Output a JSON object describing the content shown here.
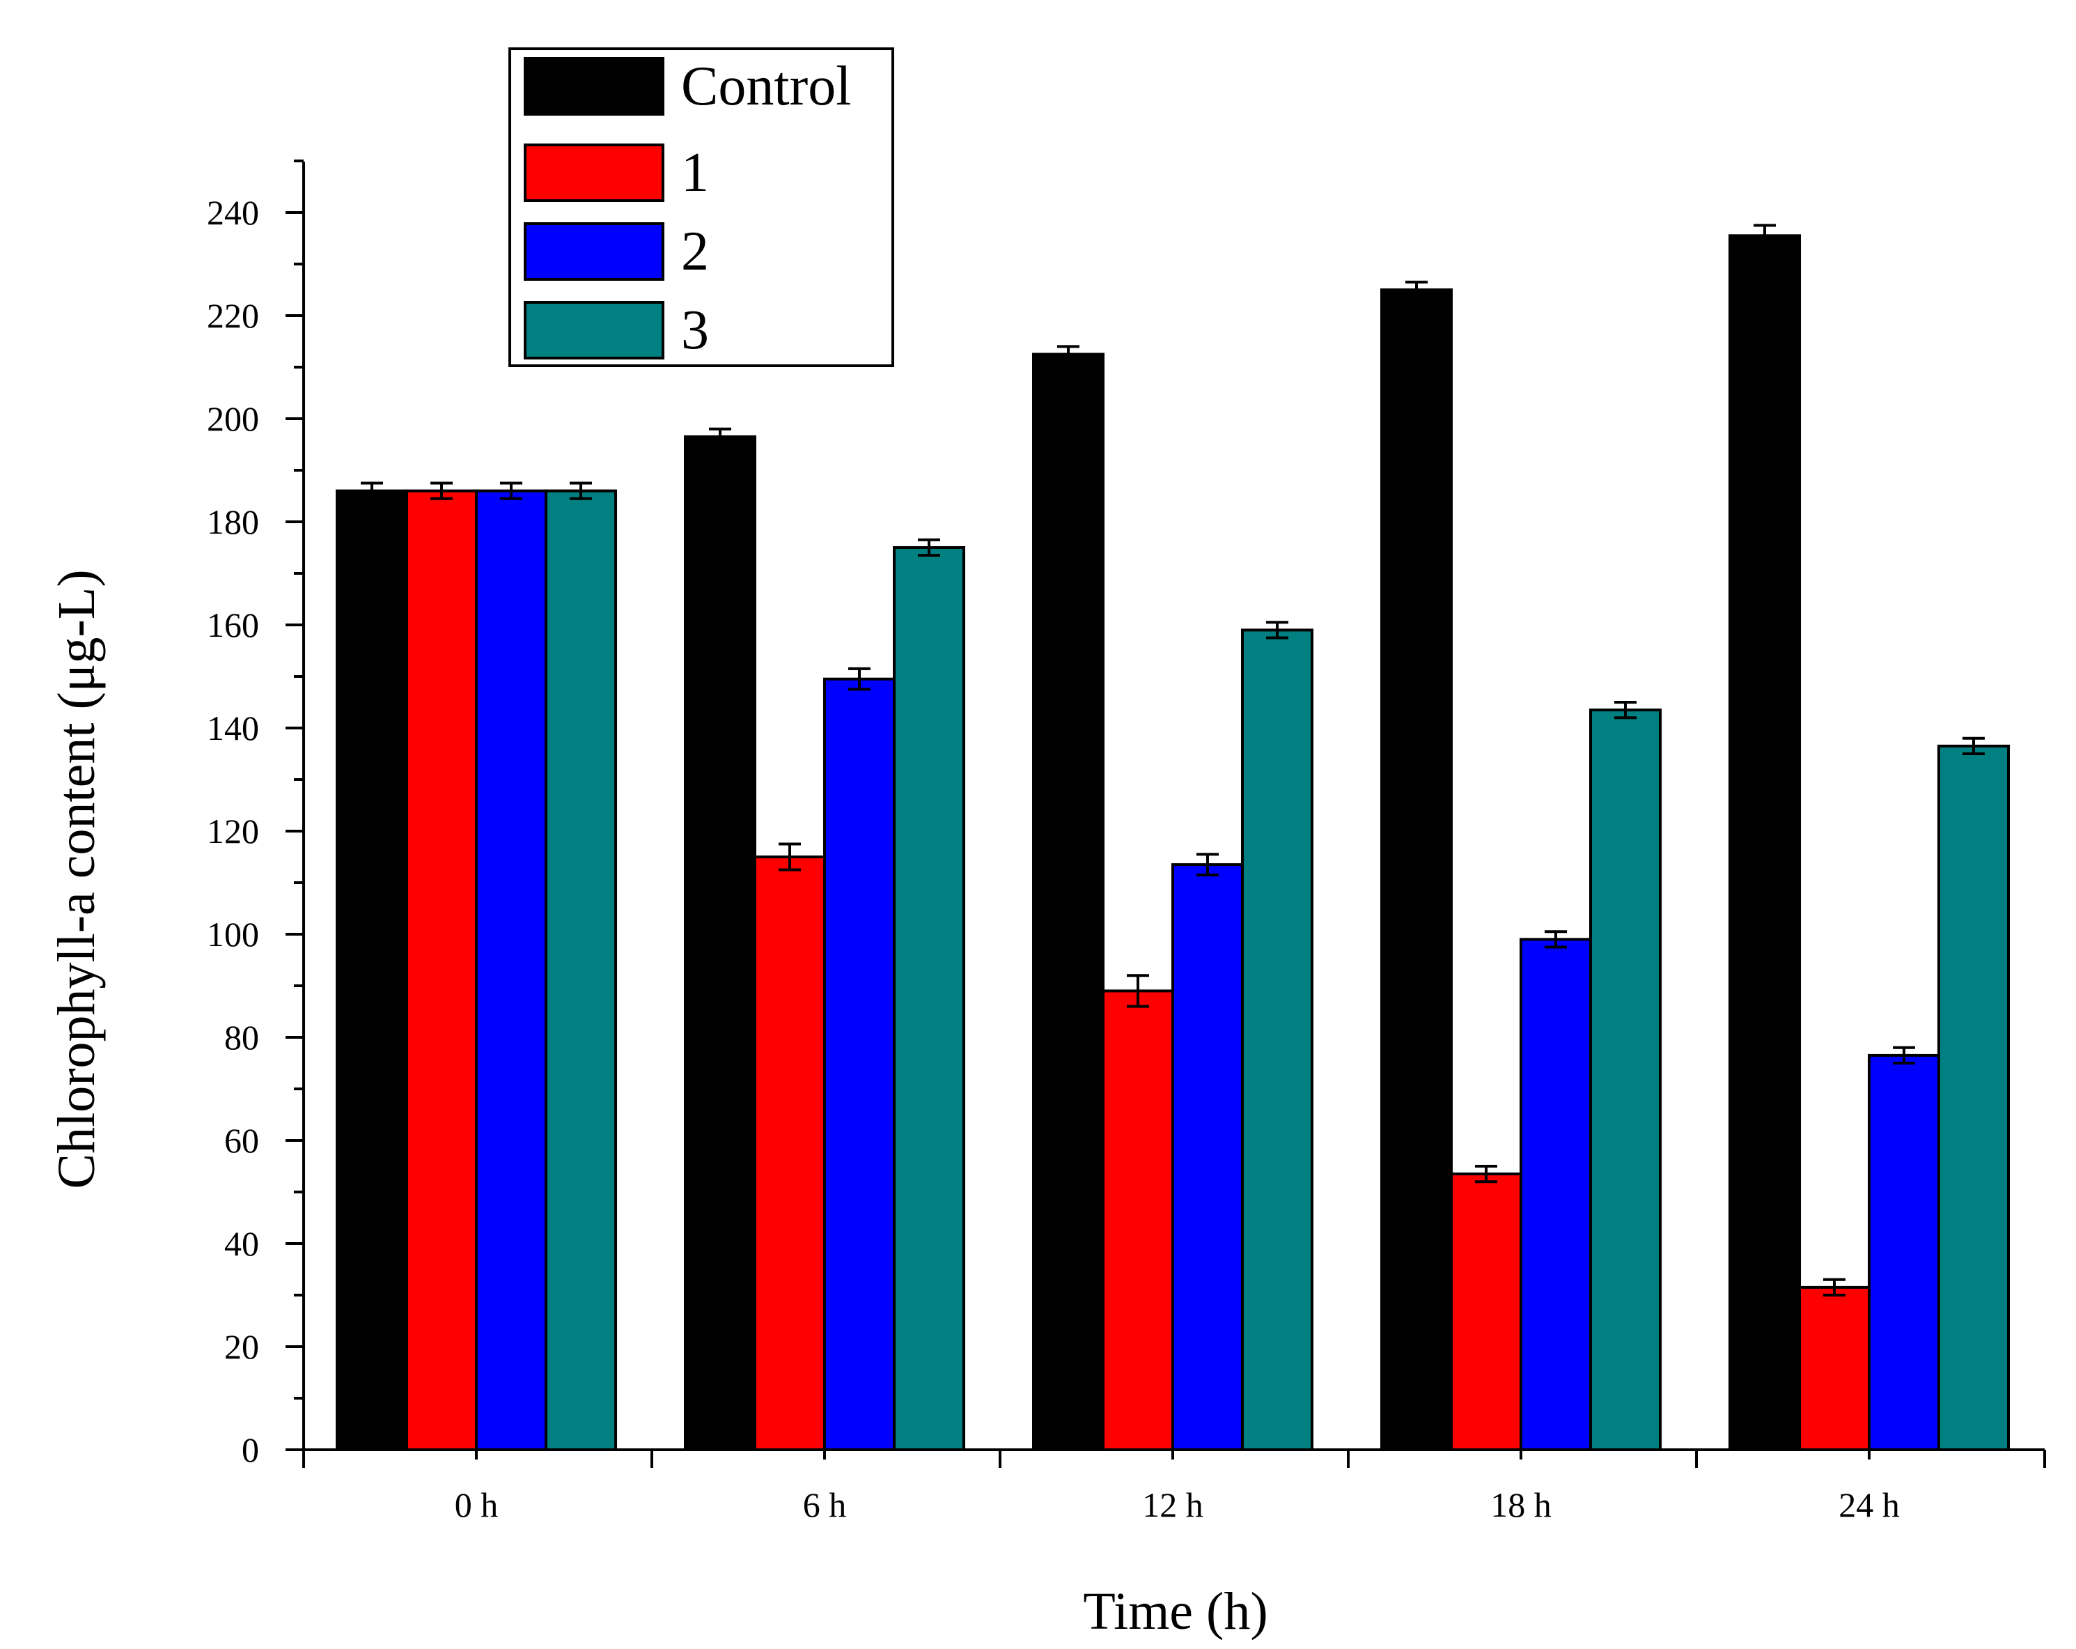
{
  "chart_data": {
    "type": "bar",
    "title": "",
    "xlabel": "Time (h)",
    "ylabel": "Chlorophyll-a content (μg-L)",
    "categories": [
      "0 h",
      "6 h",
      "12 h",
      "18 h",
      "24 h"
    ],
    "ylim": [
      0,
      250
    ],
    "yticks": [
      0,
      20,
      40,
      60,
      80,
      100,
      120,
      140,
      160,
      180,
      200,
      220,
      240
    ],
    "grid": false,
    "legend_position": "top-left",
    "series": [
      {
        "name": "Control",
        "color": "#000000",
        "values": [
          186,
          196.5,
          212.5,
          225,
          235.5
        ],
        "errors": [
          1.5,
          1.5,
          1.5,
          1.5,
          2.0
        ]
      },
      {
        "name": "1",
        "color": "#ff0000",
        "values": [
          186,
          115,
          89,
          53.5,
          31.5
        ],
        "errors": [
          1.5,
          2.5,
          3.0,
          1.5,
          1.5
        ]
      },
      {
        "name": "2",
        "color": "#0000ff",
        "values": [
          186,
          149.5,
          113.5,
          99,
          76.5
        ],
        "errors": [
          1.5,
          2.0,
          2.0,
          1.5,
          1.5
        ]
      },
      {
        "name": "3",
        "color": "#008080",
        "values": [
          186,
          175,
          159,
          143.5,
          136.5
        ],
        "errors": [
          1.5,
          1.5,
          1.5,
          1.5,
          1.5
        ]
      }
    ]
  }
}
